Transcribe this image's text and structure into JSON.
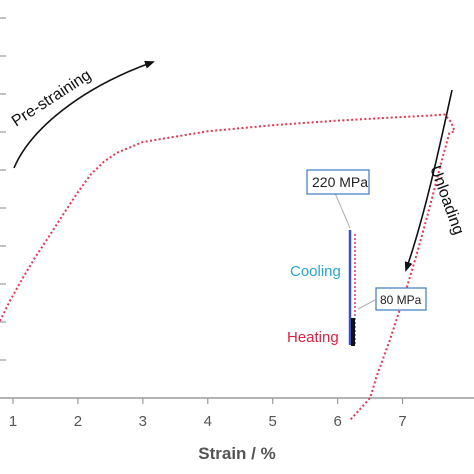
{
  "chart_data": {
    "type": "line",
    "title": "",
    "xlabel": "Strain / %",
    "ylabel": "",
    "xlim": [
      0.8,
      8.1
    ],
    "ylim": [
      0,
      1
    ],
    "x_ticks": [
      1,
      2,
      3,
      4,
      5,
      6,
      7
    ],
    "y_ticks_visible": false,
    "grid": false,
    "colors": {
      "curve": "#e8344e",
      "cooling": "#3a4fc8",
      "heating": "#111111",
      "cooling_text": "#2aa3d8",
      "heating_text": "#e02040",
      "callout_border": "#3b7bbf"
    },
    "series": [
      {
        "values": [
          [
            0.8,
            0.215
          ],
          [
            0.95,
            0.27
          ],
          [
            1.15,
            0.335
          ],
          [
            1.35,
            0.395
          ],
          [
            1.55,
            0.45
          ],
          [
            1.8,
            0.52
          ],
          [
            2.0,
            0.575
          ],
          [
            2.2,
            0.625
          ],
          [
            2.4,
            0.66
          ],
          [
            2.6,
            0.685
          ],
          [
            3.0,
            0.715
          ],
          [
            4.0,
            0.745
          ],
          [
            5.0,
            0.762
          ],
          [
            6.0,
            0.775
          ],
          [
            7.0,
            0.785
          ],
          [
            7.5,
            0.79
          ],
          [
            7.65,
            0.792
          ],
          [
            7.75,
            0.77
          ],
          [
            7.8,
            0.745
          ],
          [
            7.72,
            0.74
          ],
          [
            7.6,
            0.66
          ],
          [
            7.4,
            0.52
          ],
          [
            7.2,
            0.39
          ],
          [
            7.0,
            0.27
          ],
          [
            6.8,
            0.16
          ],
          [
            6.6,
            0.06
          ],
          [
            6.5,
            0.0
          ],
          [
            6.2,
            -0.06
          ]
        ]
      }
    ],
    "annotations": {
      "pre_straining": "Pre-straining",
      "unloading": "Unloading",
      "cooling": "Cooling",
      "heating": "Heating",
      "stress_high": "220 MPa",
      "stress_low": "80 MPa"
    }
  }
}
